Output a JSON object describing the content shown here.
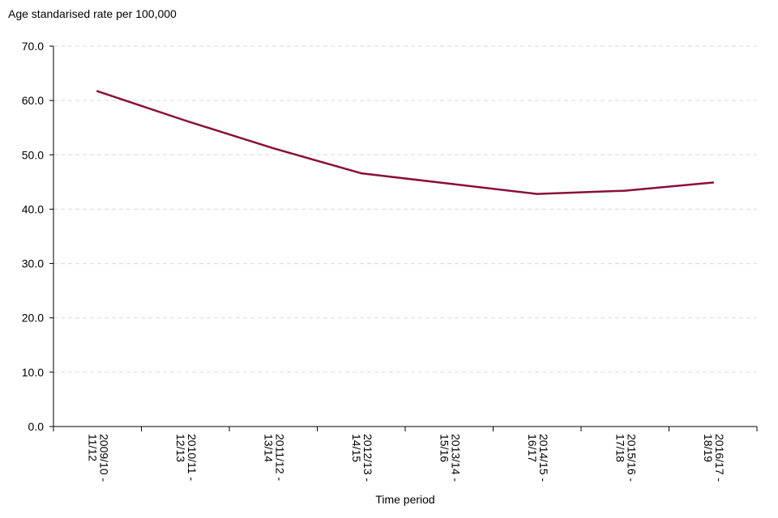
{
  "chart_data": {
    "type": "line",
    "title": "",
    "ylabel": "Age standarised rate per 100,000",
    "xlabel": "Time period",
    "ylim": [
      0,
      70
    ],
    "yticks": [
      "0.0",
      "10.0",
      "20.0",
      "30.0",
      "40.0",
      "50.0",
      "60.0",
      "70.0"
    ],
    "grid": true,
    "categories": [
      [
        "2009/10 -",
        "11/12"
      ],
      [
        "2010/11 -",
        "12/13"
      ],
      [
        "2011/12 -",
        "13/14"
      ],
      [
        "2012/13 -",
        "14/15"
      ],
      [
        "2013/14 -",
        "15/16"
      ],
      [
        "2014/15 -",
        "16/17"
      ],
      [
        "2015/16 -",
        "17/18"
      ],
      [
        "2016/17 -",
        "18/19"
      ]
    ],
    "series": [
      {
        "values": [
          61.7,
          56.3,
          51.2,
          46.6,
          44.7,
          42.8,
          43.4,
          44.9
        ],
        "color": "#8b0d3a"
      }
    ]
  }
}
